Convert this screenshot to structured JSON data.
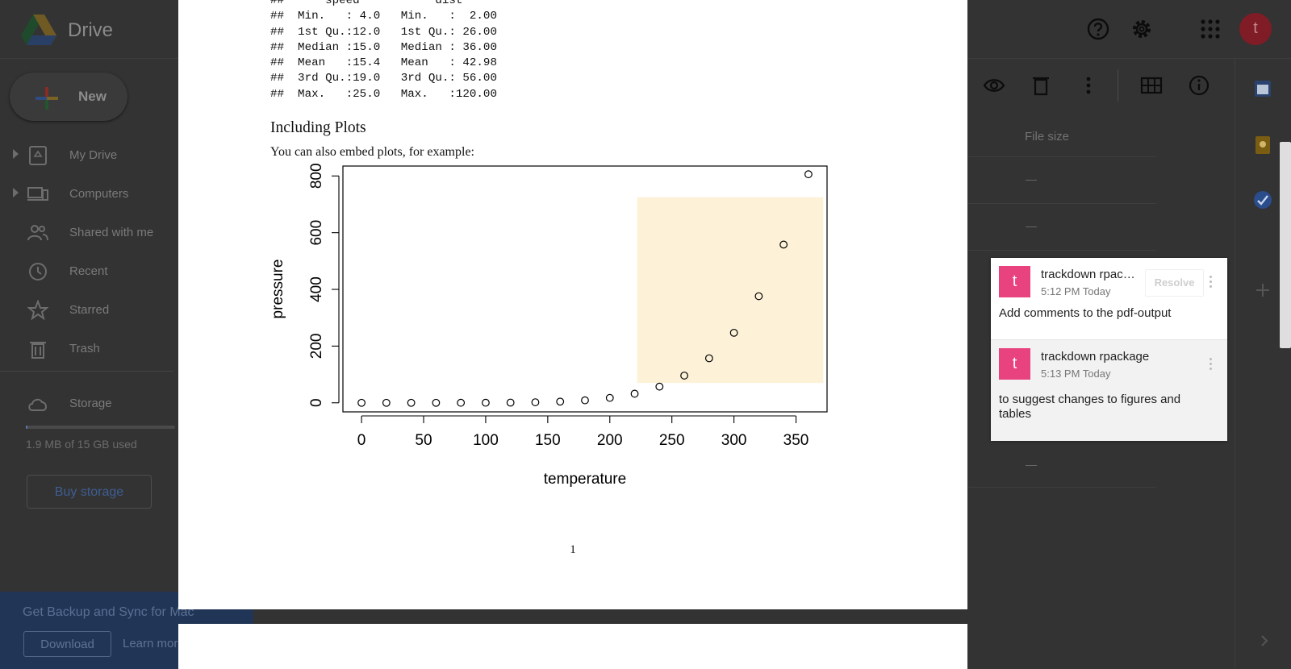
{
  "drive": {
    "brand": "Drive",
    "new_label": "New",
    "nav": [
      {
        "label": "My Drive",
        "icon": "my-drive-icon",
        "expandable": true
      },
      {
        "label": "Computers",
        "icon": "computers-icon",
        "expandable": true
      },
      {
        "label": "Shared with me",
        "icon": "shared-with-me-icon",
        "expandable": false
      },
      {
        "label": "Recent",
        "icon": "recent-icon",
        "expandable": false
      },
      {
        "label": "Starred",
        "icon": "star-icon",
        "expandable": false
      },
      {
        "label": "Trash",
        "icon": "trash-icon",
        "expandable": false
      }
    ],
    "storage_label": "Storage",
    "storage_used": "1.9 MB of 15 GB used",
    "storage_fraction": 0.0001,
    "buy_storage": "Buy storage",
    "backup_banner": {
      "title": "Get Backup and Sync for Mac",
      "download": "Download",
      "learn_more": "Learn more"
    },
    "avatar_letter": "t",
    "file_size_header": "File size",
    "file_size_values": [
      "—",
      "—",
      "—"
    ],
    "accent_color": "#1a73e8"
  },
  "pdf": {
    "code_lines": [
      "##      speed           dist",
      "##  Min.   : 4.0   Min.   :  2.00",
      "##  1st Qu.:12.0   1st Qu.: 26.00",
      "##  Median :15.0   Median : 36.00",
      "##  Mean   :15.4   Mean   : 42.98",
      "##  3rd Qu.:19.0   3rd Qu.: 56.00",
      "##  Max.   :25.0   Max.   :120.00"
    ],
    "section_title": "Including Plots",
    "paragraph": "You can also embed plots, for example:",
    "page_number": "1"
  },
  "chart_data": {
    "type": "scatter",
    "title": "",
    "xlabel": "temperature",
    "ylabel": "pressure",
    "xlim": [
      -15,
      375
    ],
    "ylim": [
      -32,
      835
    ],
    "x_ticks": [
      0,
      50,
      100,
      150,
      200,
      250,
      300,
      350
    ],
    "y_ticks": [
      0,
      200,
      400,
      600,
      800
    ],
    "x": [
      0,
      20,
      40,
      60,
      80,
      100,
      120,
      140,
      160,
      180,
      200,
      220,
      240,
      260,
      280,
      300,
      320,
      340,
      360
    ],
    "y": [
      0.0002,
      0.0012,
      0.006,
      0.03,
      0.09,
      0.27,
      0.75,
      1.85,
      4.2,
      8.8,
      17.3,
      32.1,
      57,
      96,
      157,
      247,
      376,
      558,
      806
    ],
    "highlight": {
      "x": [
        222,
        372
      ],
      "y": [
        70,
        725
      ],
      "color": "#fdf2d8"
    },
    "grid": false,
    "legend": "none"
  },
  "comments": [
    {
      "avatar": "t",
      "author": "trackdown rpac…",
      "time": "5:12 PM Today",
      "text": "Add comments to the pdf-output",
      "resolve": "Resolve",
      "avatar_color": "#e8437f"
    },
    {
      "avatar": "t",
      "author": "trackdown rpackage",
      "time": "5:13 PM Today",
      "text": "to suggest changes to figures and tables",
      "avatar_color": "#e8437f"
    }
  ]
}
